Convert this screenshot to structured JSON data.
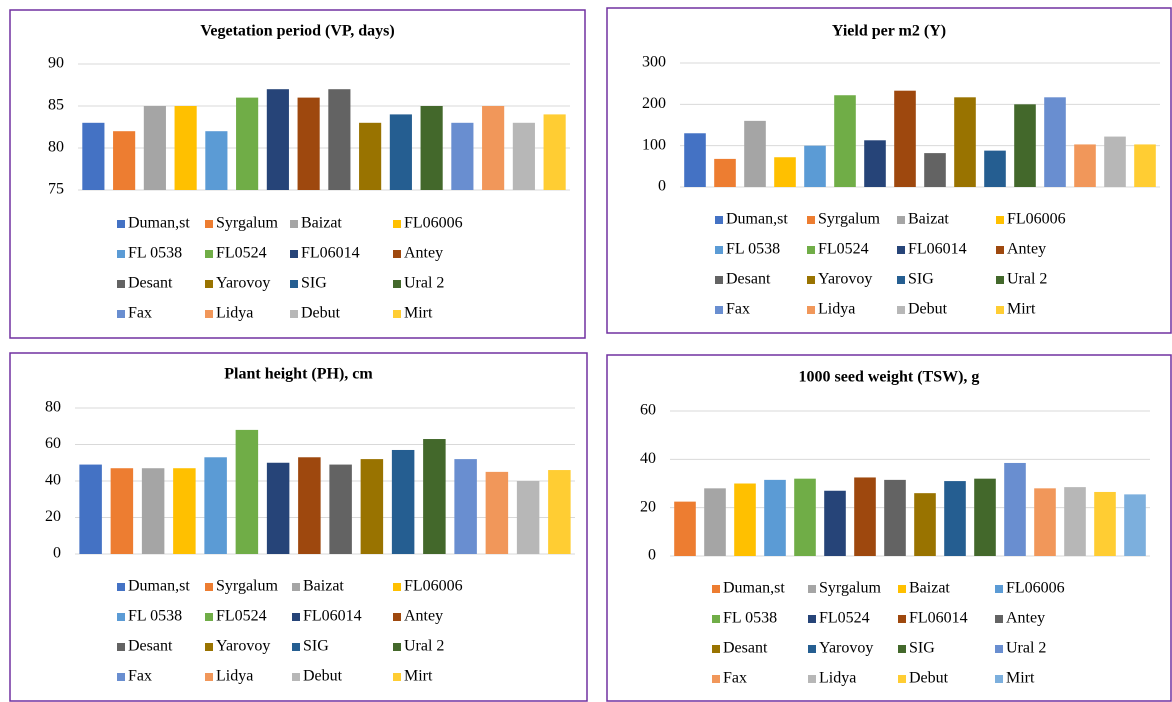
{
  "chart_data": [
    {
      "type": "bar",
      "title": "Vegetation period (VP, days)",
      "categories": [
        "Duman,st",
        "Syrgalum",
        "Baizat",
        "FL06006",
        "FL 0538",
        "FL0524",
        "FL06014",
        "Antey",
        "Desant",
        "Yarovoy",
        "SIG",
        "Ural 2",
        "Fax",
        "Lidya",
        "Debut",
        "Mirt"
      ],
      "values": [
        83,
        82,
        85,
        85,
        82,
        86,
        87,
        86,
        87,
        83,
        84,
        85,
        83,
        85,
        83,
        84
      ],
      "colors": [
        "#4472c4",
        "#ed7d31",
        "#a5a5a5",
        "#ffc000",
        "#5b9bd5",
        "#70ad47",
        "#264478",
        "#9e480e",
        "#636363",
        "#997300",
        "#255e91",
        "#43682b",
        "#698ed0",
        "#f1975a",
        "#b7b7b7",
        "#ffcd33"
      ],
      "ylim": [
        75,
        90
      ],
      "yticks": [
        75,
        80,
        85,
        90
      ],
      "grid": true
    },
    {
      "type": "bar",
      "title": "Yield per m2 (Y)",
      "categories": [
        "Duman,st",
        "Syrgalum",
        "Baizat",
        "FL06006",
        "FL 0538",
        "FL0524",
        "FL06014",
        "Antey",
        "Desant",
        "Yarovoy",
        "SIG",
        "Ural 2",
        "Fax",
        "Lidya",
        "Debut",
        "Mirt"
      ],
      "values": [
        130,
        68,
        160,
        72,
        100,
        222,
        113,
        233,
        82,
        217,
        88,
        200,
        217,
        103,
        122,
        103
      ],
      "colors": [
        "#4472c4",
        "#ed7d31",
        "#a5a5a5",
        "#ffc000",
        "#5b9bd5",
        "#70ad47",
        "#264478",
        "#9e480e",
        "#636363",
        "#997300",
        "#255e91",
        "#43682b",
        "#698ed0",
        "#f1975a",
        "#b7b7b7",
        "#ffcd33"
      ],
      "ylim": [
        0,
        300
      ],
      "yticks": [
        0,
        100,
        200,
        300
      ],
      "grid": true
    },
    {
      "type": "bar",
      "title": "Plant height (PH), cm",
      "categories": [
        "Duman,st",
        "Syrgalum",
        "Baizat",
        "FL06006",
        "FL 0538",
        "FL0524",
        "FL06014",
        "Antey",
        "Desant",
        "Yarovoy",
        "SIG",
        "Ural 2",
        "Fax",
        "Lidya",
        "Debut",
        "Mirt"
      ],
      "values": [
        49,
        47,
        47,
        47,
        53,
        68,
        50,
        53,
        49,
        52,
        57,
        63,
        52,
        45,
        40,
        46
      ],
      "colors": [
        "#4472c4",
        "#ed7d31",
        "#a5a5a5",
        "#ffc000",
        "#5b9bd5",
        "#70ad47",
        "#264478",
        "#9e480e",
        "#636363",
        "#997300",
        "#255e91",
        "#43682b",
        "#698ed0",
        "#f1975a",
        "#b7b7b7",
        "#ffcd33"
      ],
      "ylim": [
        0,
        80
      ],
      "yticks": [
        0,
        20,
        40,
        60,
        80
      ],
      "grid": true
    },
    {
      "type": "bar",
      "title": "1000 seed weight (TSW),  g",
      "categories": [
        "Duman,st",
        "Syrgalum",
        "Baizat",
        "FL06006",
        "FL 0538",
        "FL0524",
        "FL06014",
        "Antey",
        "Desant",
        "Yarovoy",
        "SIG",
        "Ural 2",
        "Fax",
        "Lidya",
        "Debut",
        "Mirt"
      ],
      "values": [
        22.5,
        28,
        30,
        31.5,
        32,
        27,
        32.5,
        31.5,
        26,
        31,
        32,
        38.5,
        28,
        28.5,
        26.5,
        25.5
      ],
      "colors": [
        "#ed7d31",
        "#a5a5a5",
        "#ffc000",
        "#5b9bd5",
        "#70ad47",
        "#264478",
        "#9e480e",
        "#636363",
        "#997300",
        "#255e91",
        "#43682b",
        "#698ed0",
        "#f1975a",
        "#b7b7b7",
        "#ffcd33",
        "#7cafdd"
      ],
      "ylim": [
        0,
        60
      ],
      "yticks": [
        0,
        20,
        40,
        60
      ],
      "grid": true
    }
  ]
}
